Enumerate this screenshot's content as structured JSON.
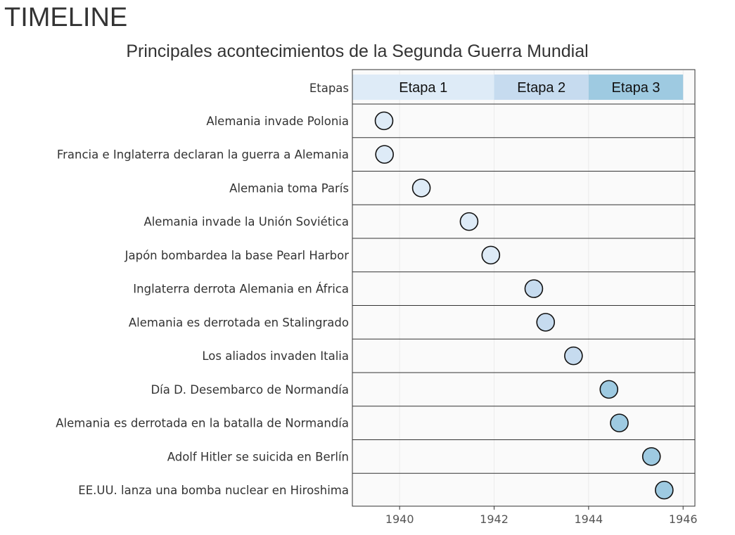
{
  "page": {
    "heading": "TIMELINE"
  },
  "chart_data": {
    "type": "scatter",
    "title": "Principales acontecimientos de la Segunda Guerra Mundial",
    "xlabel": "",
    "ylabel": "",
    "xlim": [
      1939.0,
      1946.25
    ],
    "x_ticks": [
      1940,
      1942,
      1944,
      1946
    ],
    "grid": true,
    "stage_row_label": "Etapas",
    "stages": [
      {
        "label": "Etapa 1",
        "start": 1939.0,
        "end": 1942.0,
        "color": "#deebf7"
      },
      {
        "label": "Etapa 2",
        "start": 1942.0,
        "end": 1944.0,
        "color": "#c6dbef"
      },
      {
        "label": "Etapa 3",
        "start": 1944.0,
        "end": 1946.0,
        "color": "#9ecae1"
      }
    ],
    "events": [
      {
        "label": "Alemania invade Polonia",
        "x": 1939.67,
        "stage": "Etapa 1"
      },
      {
        "label": "Francia e Inglaterra declaran la guerra a Alemania",
        "x": 1939.68,
        "stage": "Etapa 1"
      },
      {
        "label": "Alemania toma París",
        "x": 1940.46,
        "stage": "Etapa 1"
      },
      {
        "label": "Alemania invade la Unión Soviética",
        "x": 1941.47,
        "stage": "Etapa 1"
      },
      {
        "label": "Japón bombardea la base Pearl Harbor",
        "x": 1941.93,
        "stage": "Etapa 1"
      },
      {
        "label": "Inglaterra derrota Alemania en África",
        "x": 1942.84,
        "stage": "Etapa 2"
      },
      {
        "label": "Alemania es derrotada en Stalingrado",
        "x": 1943.09,
        "stage": "Etapa 2"
      },
      {
        "label": "Los aliados invaden Italia",
        "x": 1943.68,
        "stage": "Etapa 2"
      },
      {
        "label": "Día D. Desembarco de Normandía",
        "x": 1944.43,
        "stage": "Etapa 3"
      },
      {
        "label": "Alemania es derrotada en la batalla de Normandía",
        "x": 1944.65,
        "stage": "Etapa 3"
      },
      {
        "label": "Adolf Hitler se suicida en Berlín",
        "x": 1945.33,
        "stage": "Etapa 3"
      },
      {
        "label": "EE.UU. lanza una bomba nuclear en Hiroshima",
        "x": 1945.6,
        "stage": "Etapa 3"
      }
    ]
  }
}
